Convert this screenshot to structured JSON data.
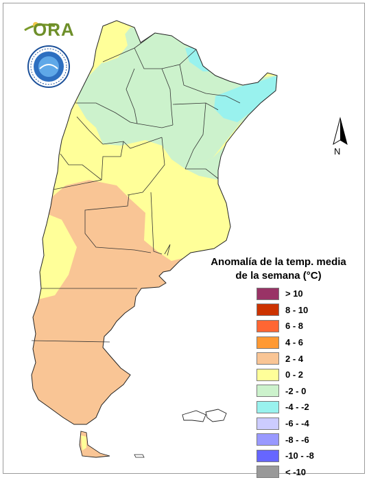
{
  "header": {
    "org_logo_text": "ORA",
    "seal_icon": "smn-argentina-seal-icon"
  },
  "compass": {
    "label": "N",
    "icon": "north-arrow-icon"
  },
  "legend": {
    "title_line1": "Anomalía de la temp. media",
    "title_line2": "de la semana (°C)",
    "items": [
      {
        "label": "> 10",
        "color": "#993366"
      },
      {
        "label": "8 - 10",
        "color": "#cc3300"
      },
      {
        "label": "6 - 8",
        "color": "#ff6633"
      },
      {
        "label": "4 - 6",
        "color": "#ff9933"
      },
      {
        "label": "2 - 4",
        "color": "#f9c595"
      },
      {
        "label": "0 - 2",
        "color": "#ffff99"
      },
      {
        "label": "-2 - 0",
        "color": "#ccf2cc"
      },
      {
        "label": "-4 - -2",
        "color": "#99f2ee"
      },
      {
        "label": "-6 - -4",
        "color": "#ccccff"
      },
      {
        "label": "-8 - -6",
        "color": "#9999ff"
      },
      {
        "label": "-10 - -8",
        "color": "#6666ff"
      },
      {
        "label": "< -10",
        "color": "#999999"
      }
    ]
  },
  "map": {
    "country": "Argentina",
    "zones": [
      {
        "name": "north-central",
        "class": "-2 - 0",
        "color": "#ccf2cc"
      },
      {
        "name": "northeast-misiones",
        "class": "-4 - -2",
        "color": "#99f2ee"
      },
      {
        "name": "andean-north",
        "class": "0 - 2",
        "color": "#ffff99"
      },
      {
        "name": "pampas",
        "class": "0 - 2",
        "color": "#ffff99"
      },
      {
        "name": "patagonia",
        "class": "2 - 4",
        "color": "#f9c595"
      }
    ]
  }
}
